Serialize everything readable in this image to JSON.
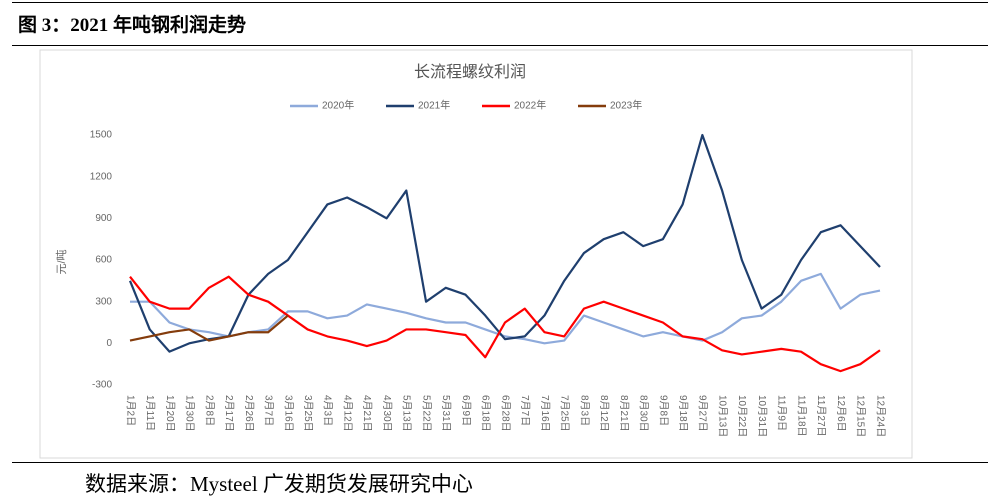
{
  "figure_title": "图 3：2021 年吨钢利润走势",
  "source": "数据来源：Mysteel 广发期货发展研究中心",
  "chart_data": {
    "type": "line",
    "title": "长流程螺纹利润",
    "y_label": "元/吨",
    "categories": [
      "1月2日",
      "1月11日",
      "1月20日",
      "1月30日",
      "2月8日",
      "2月17日",
      "2月26日",
      "3月7日",
      "3月16日",
      "3月25日",
      "4月3日",
      "4月12日",
      "4月21日",
      "4月30日",
      "5月13日",
      "5月22日",
      "5月31日",
      "6月9日",
      "6月18日",
      "6月28日",
      "7月7日",
      "7月16日",
      "7月25日",
      "8月3日",
      "8月12日",
      "8月21日",
      "8月30日",
      "9月8日",
      "9月18日",
      "9月27日",
      "10月13日",
      "10月22日",
      "10月31日",
      "11月9日",
      "11月18日",
      "11月27日",
      "12月6日",
      "12月15日",
      "12月24日"
    ],
    "series": [
      {
        "name": "2020年",
        "color": "#8eaadb",
        "values": [
          300,
          300,
          150,
          100,
          80,
          50,
          80,
          100,
          230,
          230,
          180,
          200,
          280,
          250,
          220,
          180,
          150,
          150,
          100,
          50,
          30,
          0,
          20,
          200,
          150,
          100,
          50,
          80,
          50,
          20,
          80,
          180,
          200,
          300,
          450,
          500,
          250,
          350,
          380
        ]
      },
      {
        "name": "2021年",
        "color": "#1f3f6e",
        "values": [
          450,
          100,
          -60,
          0,
          30,
          50,
          350,
          500,
          600,
          800,
          1000,
          1050,
          980,
          900,
          1100,
          300,
          400,
          350,
          200,
          30,
          50,
          200,
          450,
          650,
          750,
          800,
          700,
          750,
          1000,
          1500,
          1100,
          600,
          250,
          350,
          600,
          800,
          850,
          700,
          550
        ]
      },
      {
        "name": "2022年",
        "color": "#ff0000",
        "values": [
          480,
          300,
          250,
          250,
          400,
          480,
          350,
          300,
          200,
          100,
          50,
          20,
          -20,
          20,
          100,
          100,
          80,
          60,
          -100,
          150,
          250,
          80,
          50,
          250,
          300,
          250,
          200,
          150,
          50,
          30,
          -50,
          -80,
          -60,
          -40,
          -60,
          -150,
          -200,
          -150,
          -50
        ]
      },
      {
        "name": "2023年",
        "color": "#843c0c",
        "values": [
          20,
          50,
          80,
          100,
          20,
          50,
          80,
          80,
          200,
          null,
          null,
          null,
          null,
          null,
          null,
          null,
          null,
          null,
          null,
          null,
          null,
          null,
          null,
          null,
          null,
          null,
          null,
          null,
          null,
          null,
          null,
          null,
          null,
          null,
          null,
          null,
          null,
          null,
          null
        ]
      }
    ],
    "ylim": [
      -300,
      1500
    ],
    "yticks": [
      -300,
      0,
      300,
      600,
      900,
      1200,
      1500
    ],
    "legend": "top"
  }
}
